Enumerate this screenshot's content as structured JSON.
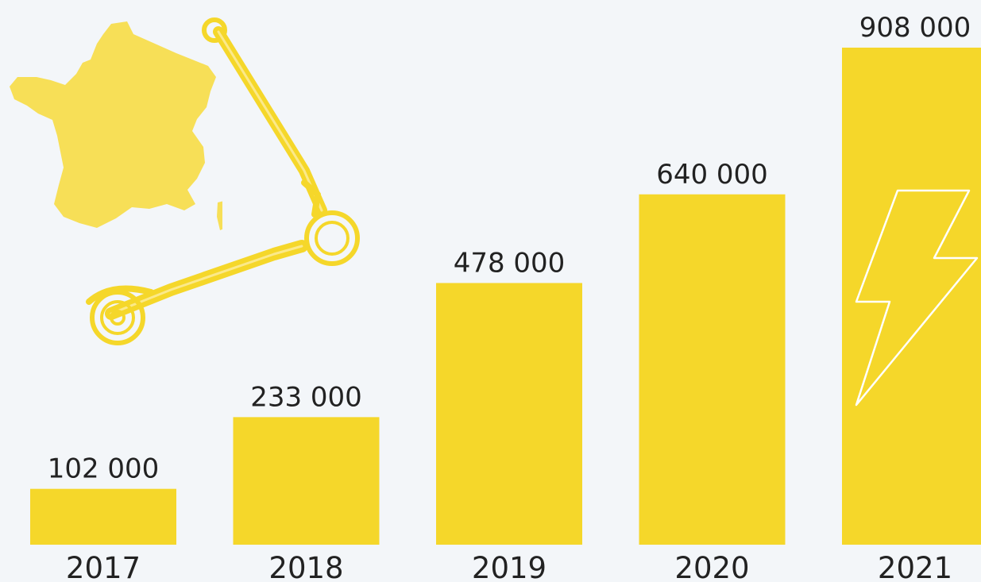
{
  "chart_data": {
    "type": "bar",
    "categories": [
      "2017",
      "2018",
      "2019",
      "2020",
      "2021"
    ],
    "values": [
      102000,
      233000,
      478000,
      640000,
      908000
    ],
    "value_labels": [
      "102 000",
      "233 000",
      "478 000",
      "640 000",
      "908 000"
    ],
    "title": "",
    "xlabel": "",
    "ylabel": "",
    "ylim": [
      0,
      908000
    ],
    "grid": false,
    "bar_color": "#f5d72a",
    "background_color": "#f3f6f9"
  },
  "decorations": {
    "map": "france-map-icon",
    "scooter": "electric-scooter-icon",
    "bolt": "lightning-bolt-icon",
    "map_color": "#f7df57",
    "scooter_color": "#f5d72a"
  }
}
